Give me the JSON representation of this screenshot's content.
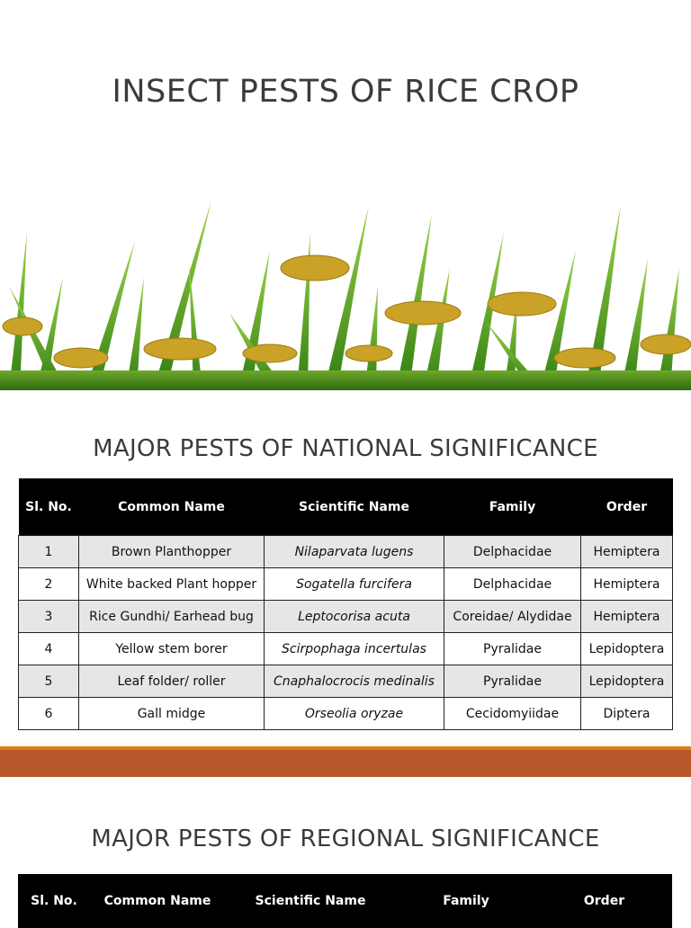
{
  "slide1": {
    "title": "INSECT PESTS OF RICE CROP",
    "banner_image": "rice-plants-image",
    "section_title": "MAJOR PESTS OF NATIONAL SIGNIFICANCE",
    "columns": [
      "Sl. No.",
      "Common Name",
      "Scientific Name",
      "Family",
      "Order"
    ],
    "rows": [
      {
        "no": "1",
        "common": "Brown Planthopper",
        "scientific": "Nilaparvata lugens",
        "family": "Delphacidae",
        "order": "Hemiptera"
      },
      {
        "no": "2",
        "common": "White backed Plant hopper",
        "scientific": "Sogatella furcifera",
        "family": "Delphacidae",
        "order": "Hemiptera"
      },
      {
        "no": "3",
        "common": "Rice Gundhi/ Earhead bug",
        "scientific": "Leptocorisa acuta",
        "family": "Coreidae/ Alydidae",
        "order": "Hemiptera"
      },
      {
        "no": "4",
        "common": "Yellow stem borer",
        "scientific": "Scirpophaga incertulas",
        "family": "Pyralidae",
        "order": "Lepidoptera"
      },
      {
        "no": "5",
        "common": "Leaf folder/ roller",
        "scientific": "Cnaphalocrocis medinalis",
        "family": "Pyralidae",
        "order": "Lepidoptera"
      },
      {
        "no": "6",
        "common": "Gall midge",
        "scientific": "Orseolia oryzae",
        "family": "Cecidomyiidae",
        "order": "Diptera"
      }
    ]
  },
  "slide2": {
    "section_title": "MAJOR PESTS OF REGIONAL SIGNIFICANCE",
    "columns": [
      "Sl. No.",
      "Common Name",
      "Scientific Name",
      "Family",
      "Order"
    ]
  },
  "colors": {
    "divider_accent": "#e07b1c",
    "divider": "#b8572a",
    "header_bg": "#000000",
    "row_shade": "#e6e6e6"
  }
}
